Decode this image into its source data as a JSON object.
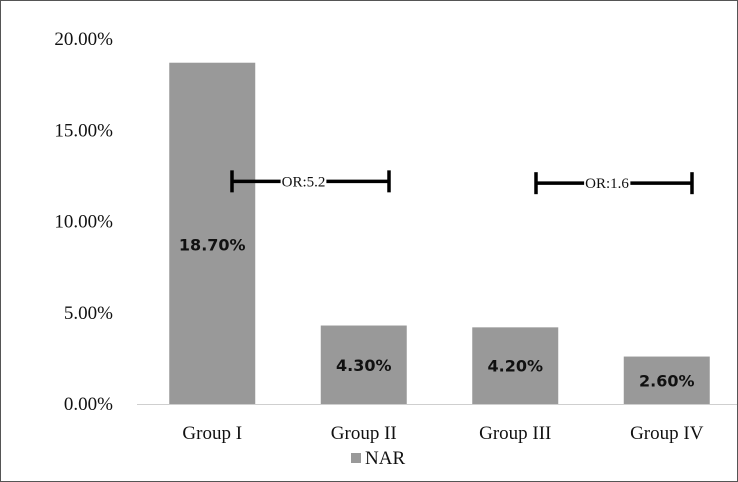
{
  "chart_data": {
    "type": "bar",
    "categories": [
      "Group I",
      "Group II",
      "Group III",
      "Group IV"
    ],
    "series": [
      {
        "name": "NAR",
        "values": [
          18.7,
          4.3,
          4.2,
          2.6
        ],
        "color": "#999999"
      }
    ],
    "data_labels": [
      "18.70%",
      "4.30%",
      "4.20%",
      "2.60%"
    ],
    "ylim": [
      0,
      20
    ],
    "y_ticks": [
      {
        "value": 0,
        "label": "0.00%"
      },
      {
        "value": 5,
        "label": "5.00%"
      },
      {
        "value": 10,
        "label": "10.00%"
      },
      {
        "value": 15,
        "label": "15.00%"
      },
      {
        "value": 20,
        "label": "20.00%"
      }
    ],
    "annotations": [
      {
        "label": "OR:5.2",
        "from": "Group I",
        "to": "Group II",
        "y": 12.2
      },
      {
        "label": "OR:1.6",
        "from": "Group III",
        "to": "Group IV",
        "y": 12.1
      }
    ],
    "legend": {
      "position": "bottom",
      "entries": [
        "NAR"
      ]
    },
    "grid": false
  }
}
